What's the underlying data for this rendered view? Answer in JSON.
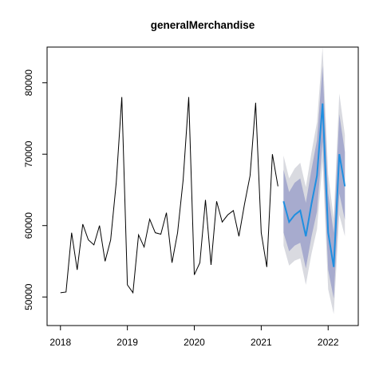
{
  "chart_data": {
    "type": "line",
    "title": "generalMerchandise",
    "xlabel": "",
    "ylabel": "",
    "xlim": [
      2017.8,
      2022.45
    ],
    "ylim": [
      46000,
      85000
    ],
    "grid": false,
    "legend": "none",
    "x_ticks": [
      {
        "value": 2018,
        "label": "2018"
      },
      {
        "value": 2019,
        "label": "2019"
      },
      {
        "value": 2020,
        "label": "2020"
      },
      {
        "value": 2021,
        "label": "2021"
      },
      {
        "value": 2022,
        "label": "2022"
      }
    ],
    "y_ticks": [
      {
        "value": 50000,
        "label": "50000"
      },
      {
        "value": 60000,
        "label": "60000"
      },
      {
        "value": 70000,
        "label": "70000"
      },
      {
        "value": 80000,
        "label": "80000"
      }
    ],
    "series": [
      {
        "role": "observed",
        "color": "#000000",
        "x": [
          2018.0,
          2018.0833,
          2018.1667,
          2018.25,
          2018.3333,
          2018.4167,
          2018.5,
          2018.5833,
          2018.6667,
          2018.75,
          2018.8333,
          2018.9167,
          2019.0,
          2019.0833,
          2019.1667,
          2019.25,
          2019.3333,
          2019.4167,
          2019.5,
          2019.5833,
          2019.6667,
          2019.75,
          2019.8333,
          2019.9167,
          2020.0,
          2020.0833,
          2020.1667,
          2020.25,
          2020.3333,
          2020.4167,
          2020.5,
          2020.5833,
          2020.6667,
          2020.75,
          2020.8333,
          2020.9167,
          2021.0,
          2021.0833,
          2021.1667,
          2021.25
        ],
        "values": [
          50600,
          50700,
          59000,
          53800,
          60200,
          58000,
          57300,
          60000,
          55000,
          58000,
          66000,
          78000,
          51700,
          50600,
          58700,
          57000,
          60900,
          59000,
          58800,
          61800,
          54800,
          59000,
          66400,
          78000,
          53100,
          54800,
          63600,
          54500,
          63400,
          60500,
          61500,
          62100,
          58500,
          63000,
          67000,
          77200,
          59000,
          54200,
          70000,
          65500
        ]
      },
      {
        "role": "forecast",
        "color": "#1f8fe0",
        "x": [
          2021.3333,
          2021.4167,
          2021.5,
          2021.5833,
          2021.6667,
          2021.75,
          2021.8333,
          2021.9167,
          2022.0,
          2022.0833,
          2022.1667,
          2022.25
        ],
        "values": [
          63400,
          60500,
          61500,
          62100,
          58500,
          63000,
          67000,
          77100,
          59000,
          54200,
          70000,
          65500
        ],
        "lower_80": [
          59000,
          56400,
          57200,
          57600,
          54000,
          58400,
          62000,
          71800,
          53800,
          49800,
          64500,
          60800
        ],
        "upper_80": [
          67800,
          64700,
          66000,
          66600,
          63200,
          67800,
          72000,
          82400,
          64500,
          59000,
          75600,
          70300
        ],
        "lower_95": [
          57200,
          54400,
          55100,
          55400,
          51700,
          56000,
          59500,
          69000,
          51100,
          47600,
          61500,
          58500
        ],
        "upper_95": [
          69800,
          66600,
          68000,
          68800,
          65400,
          70200,
          74500,
          85000,
          67200,
          61000,
          78500,
          72700
        ],
        "band_80_color": "#a7abce",
        "band_95_color": "#d9dae0"
      }
    ]
  }
}
